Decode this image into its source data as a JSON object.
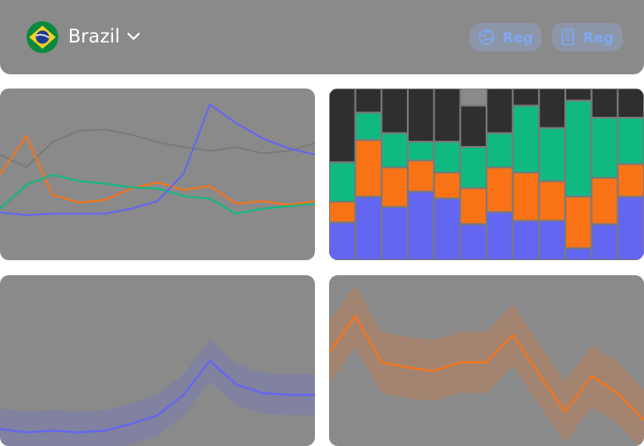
{
  "header": {
    "country": "Brazil",
    "flag_icon": "brazil-flag-icon",
    "buttons": [
      {
        "label": "Reg",
        "icon": "globe-icon"
      },
      {
        "label": "Reg",
        "icon": "phone-icon"
      }
    ]
  },
  "colors": {
    "grey": "#7a7a7a",
    "orange": "#f97316",
    "green": "#10b981",
    "blue": "#6366f1",
    "dark": "#2f2f2f",
    "panel": "#8a8a8a"
  },
  "chart_data": [
    {
      "type": "line",
      "series": [
        {
          "color": "#7a7a7a",
          "values": [
            60,
            50,
            70,
            79,
            80,
            76,
            70,
            66,
            63,
            66,
            61,
            63,
            69
          ]
        },
        {
          "color": "#f97316",
          "values": [
            44,
            75,
            28,
            22,
            24,
            33,
            38,
            32,
            35,
            21,
            23,
            20,
            23
          ]
        },
        {
          "color": "#10b981",
          "values": [
            17,
            36,
            44,
            39,
            37,
            34,
            33,
            27,
            25,
            13,
            17,
            19,
            21
          ]
        },
        {
          "color": "#6366f1",
          "values": [
            14,
            12,
            13,
            13,
            13,
            17,
            23,
            45,
            100,
            85,
            73,
            65,
            60
          ]
        }
      ],
      "ylim": [
        0,
        100
      ]
    },
    {
      "type": "bar",
      "stacked": true,
      "series": [
        {
          "color": "#6366f1",
          "values": [
            22,
            37,
            31,
            40,
            36,
            21,
            28,
            23,
            23,
            7,
            21,
            37
          ]
        },
        {
          "color": "#f97316",
          "values": [
            12,
            33,
            23,
            18,
            15,
            21,
            26,
            28,
            23,
            30,
            27,
            19
          ]
        },
        {
          "color": "#10b981",
          "values": [
            23,
            16,
            20,
            11,
            18,
            24,
            20,
            39,
            31,
            56,
            35,
            27
          ]
        },
        {
          "color": "#2f2f2f",
          "values": [
            43,
            14,
            26,
            31,
            31,
            24,
            26,
            10,
            23,
            7,
            17,
            17
          ]
        }
      ],
      "ylim": [
        0,
        100
      ]
    },
    {
      "type": "area",
      "series": [
        {
          "color": "#6366f1",
          "values": [
            10,
            8,
            9,
            8,
            9,
            13,
            18,
            30,
            50,
            36,
            31,
            30,
            30
          ]
        }
      ],
      "band": 12,
      "ylim": [
        0,
        100
      ]
    },
    {
      "type": "area",
      "series": [
        {
          "color": "#f97316",
          "values": [
            55,
            76,
            49,
            46,
            44,
            49,
            49,
            65,
            42,
            20,
            41,
            31,
            15
          ]
        }
      ],
      "band": 18,
      "ylim": [
        0,
        100
      ]
    }
  ]
}
